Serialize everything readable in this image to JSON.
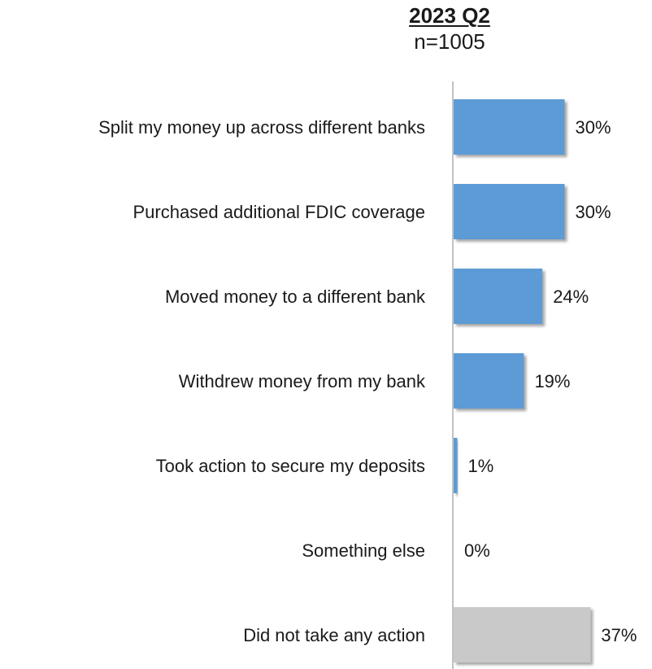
{
  "chart_data": {
    "type": "bar",
    "orientation": "horizontal",
    "title": "2023 Q2",
    "subtitle": "n=1005",
    "categories": [
      "Split my money up across different banks",
      "Purchased additional FDIC coverage",
      "Moved money to a different bank",
      "Withdrew money from my bank",
      "Took action to secure my deposits",
      "Something else",
      "Did not take any action"
    ],
    "values": [
      30,
      30,
      24,
      19,
      1,
      0,
      37
    ],
    "value_labels": [
      "30%",
      "30%",
      "24%",
      "19%",
      "1%",
      "0%",
      "37%"
    ],
    "bar_colors": [
      "#5b9bd5",
      "#5b9bd5",
      "#5b9bd5",
      "#5b9bd5",
      "#5b9bd5",
      "#5b9bd5",
      "#c9c9c9"
    ],
    "xlim": [
      0,
      37
    ],
    "value_axis_visible": false,
    "grid": false,
    "legend": "none",
    "bar_shadow": true
  }
}
